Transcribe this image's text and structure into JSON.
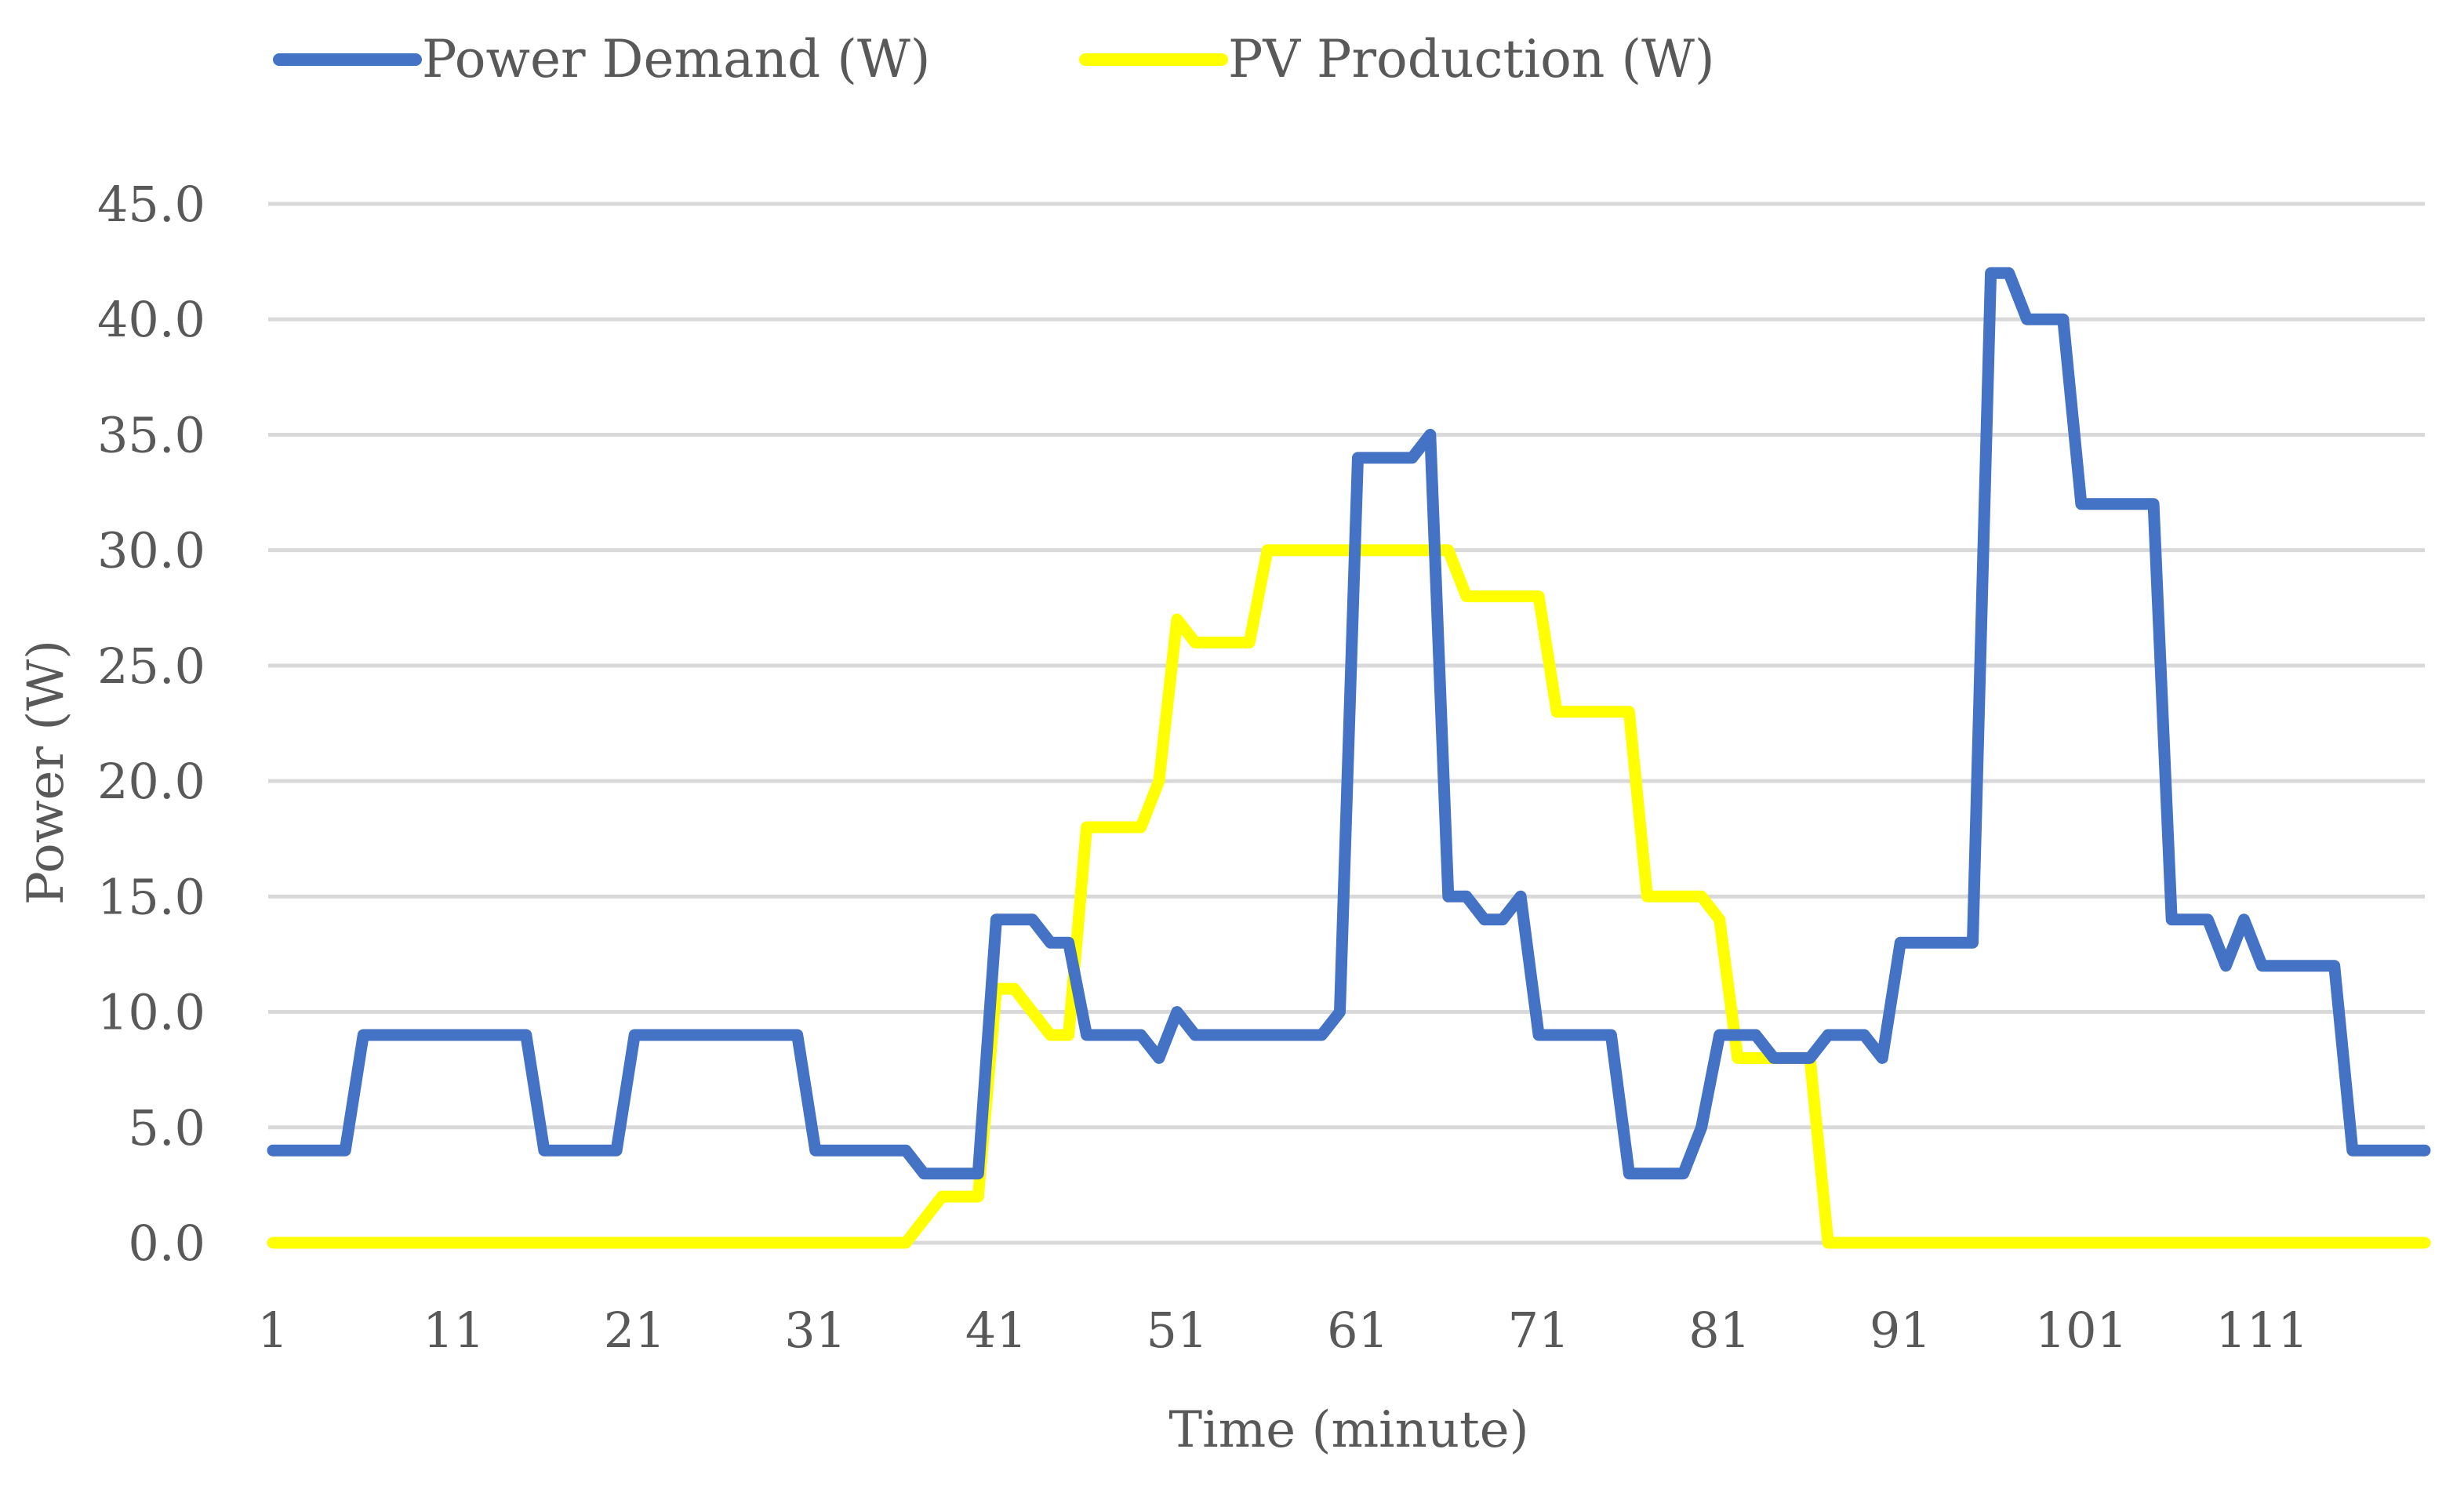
{
  "chart_data": {
    "type": "line",
    "title": "",
    "xlabel": "Time (minute)",
    "ylabel": "Power (W)",
    "ylim": [
      0,
      45
    ],
    "yticks": [
      "0.0",
      "5.0",
      "10.0",
      "15.0",
      "20.0",
      "25.0",
      "30.0",
      "35.0",
      "40.0",
      "45.0"
    ],
    "xticks": [
      "1",
      "11",
      "21",
      "31",
      "41",
      "51",
      "61",
      "71",
      "81",
      "91",
      "101",
      "111"
    ],
    "xrange": [
      1,
      120
    ],
    "grid": true,
    "legend_position": "top",
    "x": [
      1,
      2,
      3,
      4,
      5,
      6,
      7,
      8,
      9,
      10,
      11,
      12,
      13,
      14,
      15,
      16,
      17,
      18,
      19,
      20,
      21,
      22,
      23,
      24,
      25,
      26,
      27,
      28,
      29,
      30,
      31,
      32,
      33,
      34,
      35,
      36,
      37,
      38,
      39,
      40,
      41,
      42,
      43,
      44,
      45,
      46,
      47,
      48,
      49,
      50,
      51,
      52,
      53,
      54,
      55,
      56,
      57,
      58,
      59,
      60,
      61,
      62,
      63,
      64,
      65,
      66,
      67,
      68,
      69,
      70,
      71,
      72,
      73,
      74,
      75,
      76,
      77,
      78,
      79,
      80,
      81,
      82,
      83,
      84,
      85,
      86,
      87,
      88,
      89,
      90,
      91,
      92,
      93,
      94,
      95,
      96,
      97,
      98,
      99,
      100,
      101,
      102,
      103,
      104,
      105,
      106,
      107,
      108,
      109,
      110,
      111,
      112,
      113,
      114,
      115,
      116,
      117,
      118,
      119,
      120
    ],
    "series": [
      {
        "name": "Power Demand (W)",
        "color": "#4472c4",
        "values": [
          4,
          4,
          4,
          4,
          4,
          9,
          9,
          9,
          9,
          9,
          9,
          9,
          9,
          9,
          9,
          4,
          4,
          4,
          4,
          4,
          9,
          9,
          9,
          9,
          9,
          9,
          9,
          9,
          9,
          9,
          4,
          4,
          4,
          4,
          4,
          4,
          3,
          3,
          3,
          3,
          14,
          14,
          14,
          13,
          13,
          9,
          9,
          9,
          9,
          8,
          10,
          9,
          9,
          9,
          9,
          9,
          9,
          9,
          9,
          10,
          34,
          34,
          34,
          34,
          35,
          15,
          15,
          14,
          14,
          15,
          9,
          9,
          9,
          9,
          9,
          3,
          3,
          3,
          3,
          5,
          9,
          9,
          9,
          8,
          8,
          8,
          9,
          9,
          9,
          8,
          13,
          13,
          13,
          13,
          13,
          42,
          42,
          40,
          40,
          40,
          32,
          32,
          32,
          32,
          32,
          14,
          14,
          14,
          12,
          14,
          12,
          12,
          12,
          12,
          12,
          4,
          4,
          4,
          4,
          4
        ]
      },
      {
        "name": "PV Production (W)",
        "color": "#ffff00",
        "values": [
          0,
          0,
          0,
          0,
          0,
          0,
          0,
          0,
          0,
          0,
          0,
          0,
          0,
          0,
          0,
          0,
          0,
          0,
          0,
          0,
          0,
          0,
          0,
          0,
          0,
          0,
          0,
          0,
          0,
          0,
          0,
          0,
          0,
          0,
          0,
          0,
          1,
          2,
          2,
          2,
          11,
          11,
          10,
          9,
          9,
          18,
          18,
          18,
          18,
          20,
          27,
          26,
          26,
          26,
          26,
          30,
          30,
          30,
          30,
          30,
          30,
          30,
          30,
          30,
          30,
          30,
          28,
          28,
          28,
          28,
          28,
          23,
          23,
          23,
          23,
          23,
          15,
          15,
          15,
          15,
          14,
          8,
          8,
          8,
          8,
          8,
          0,
          0,
          0,
          0,
          0,
          0,
          0,
          0,
          0,
          0,
          0,
          0,
          0,
          0,
          0,
          0,
          0,
          0,
          0,
          0,
          0,
          0,
          0,
          0,
          0,
          0,
          0,
          0,
          0,
          0,
          0,
          0,
          0,
          0
        ]
      }
    ]
  }
}
